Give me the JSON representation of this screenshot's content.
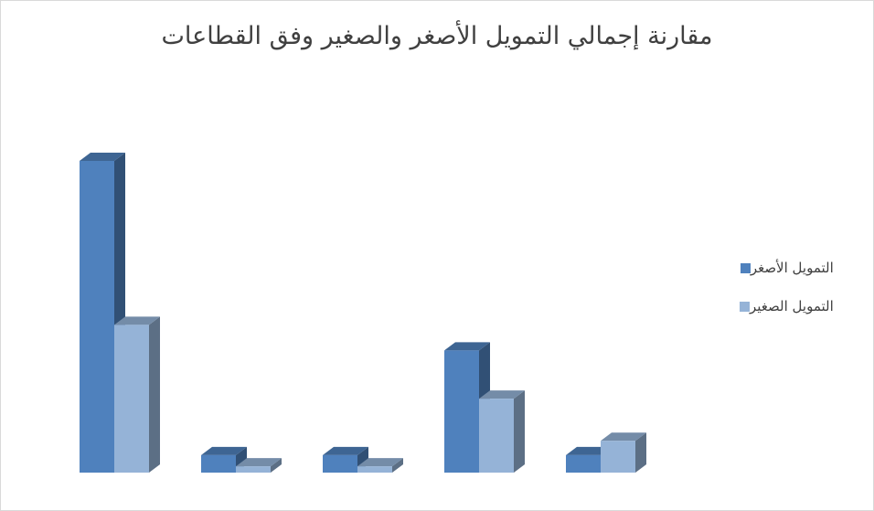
{
  "chart_data": {
    "type": "bar",
    "title": "مقارنة إجمالي التمويل الأصغر والصغير وفق القطاعات",
    "categories": [
      "",
      "",
      "",
      "",
      ""
    ],
    "series": [
      {
        "name": "التمويل الأصغر",
        "values": [
          100,
          5.6,
          5.6,
          39.2,
          5.6
        ],
        "color": "#4f81bd"
      },
      {
        "name": "التمويل الصغير",
        "values": [
          47.4,
          2.0,
          2.0,
          23.7,
          10.2
        ],
        "color": "#95b3d7"
      }
    ],
    "ylim": [
      0,
      100
    ],
    "grid": false,
    "legend_position": "right",
    "style": "3d-column"
  }
}
